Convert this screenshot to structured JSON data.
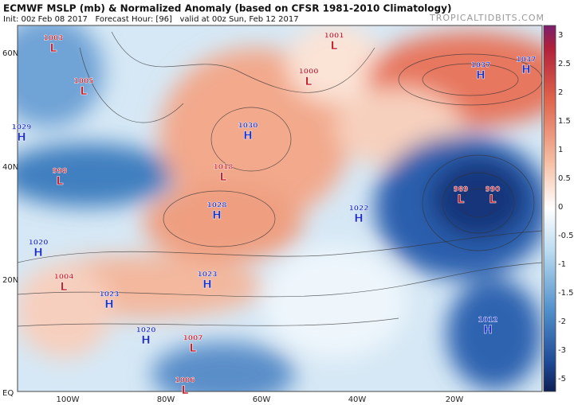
{
  "header": {
    "title": "ECMWF MSLP (mb) & Normalized Anomaly (based on CFSR 1981-2010 Climatology)",
    "subtitle": "Init: 00z Feb 08 2017   Forecast Hour: [96]   valid at 00z Sun, Feb 12 2017",
    "watermark": "TROPICALTIDBITS.COM"
  },
  "latitude_labels": [
    "60N",
    "40N",
    "20N",
    "EQ"
  ],
  "longitude_labels": [
    "100W",
    "80W",
    "60W",
    "40W",
    "20W"
  ],
  "colorbar_labels": [
    "3",
    "2.5",
    "2",
    "1.5",
    "1",
    "0.5",
    "0",
    "-0.5",
    "-1",
    "-1.5",
    "-2",
    "-3",
    "-5"
  ],
  "pressure_centers": [
    {
      "type": "L",
      "value": 1003
    },
    {
      "type": "L",
      "value": 1005
    },
    {
      "type": "H",
      "value": 1029
    },
    {
      "type": "L",
      "value": 998
    },
    {
      "type": "H",
      "value": 1030
    },
    {
      "type": "L",
      "value": 1018
    },
    {
      "type": "H",
      "value": 1028
    },
    {
      "type": "H",
      "value": 1022
    },
    {
      "type": "L",
      "value": 1001
    },
    {
      "type": "L",
      "value": 1000
    },
    {
      "type": "H",
      "value": 1037
    },
    {
      "type": "H",
      "value": 1037
    },
    {
      "type": "L",
      "value": 989
    },
    {
      "type": "L",
      "value": 990
    },
    {
      "type": "H",
      "value": 1020
    },
    {
      "type": "L",
      "value": 1004
    },
    {
      "type": "H",
      "value": 1023
    },
    {
      "type": "H",
      "value": 1023
    },
    {
      "type": "H",
      "value": 1020
    },
    {
      "type": "L",
      "value": 1007
    },
    {
      "type": "L",
      "value": 1006
    },
    {
      "type": "H",
      "value": 1012
    }
  ]
}
